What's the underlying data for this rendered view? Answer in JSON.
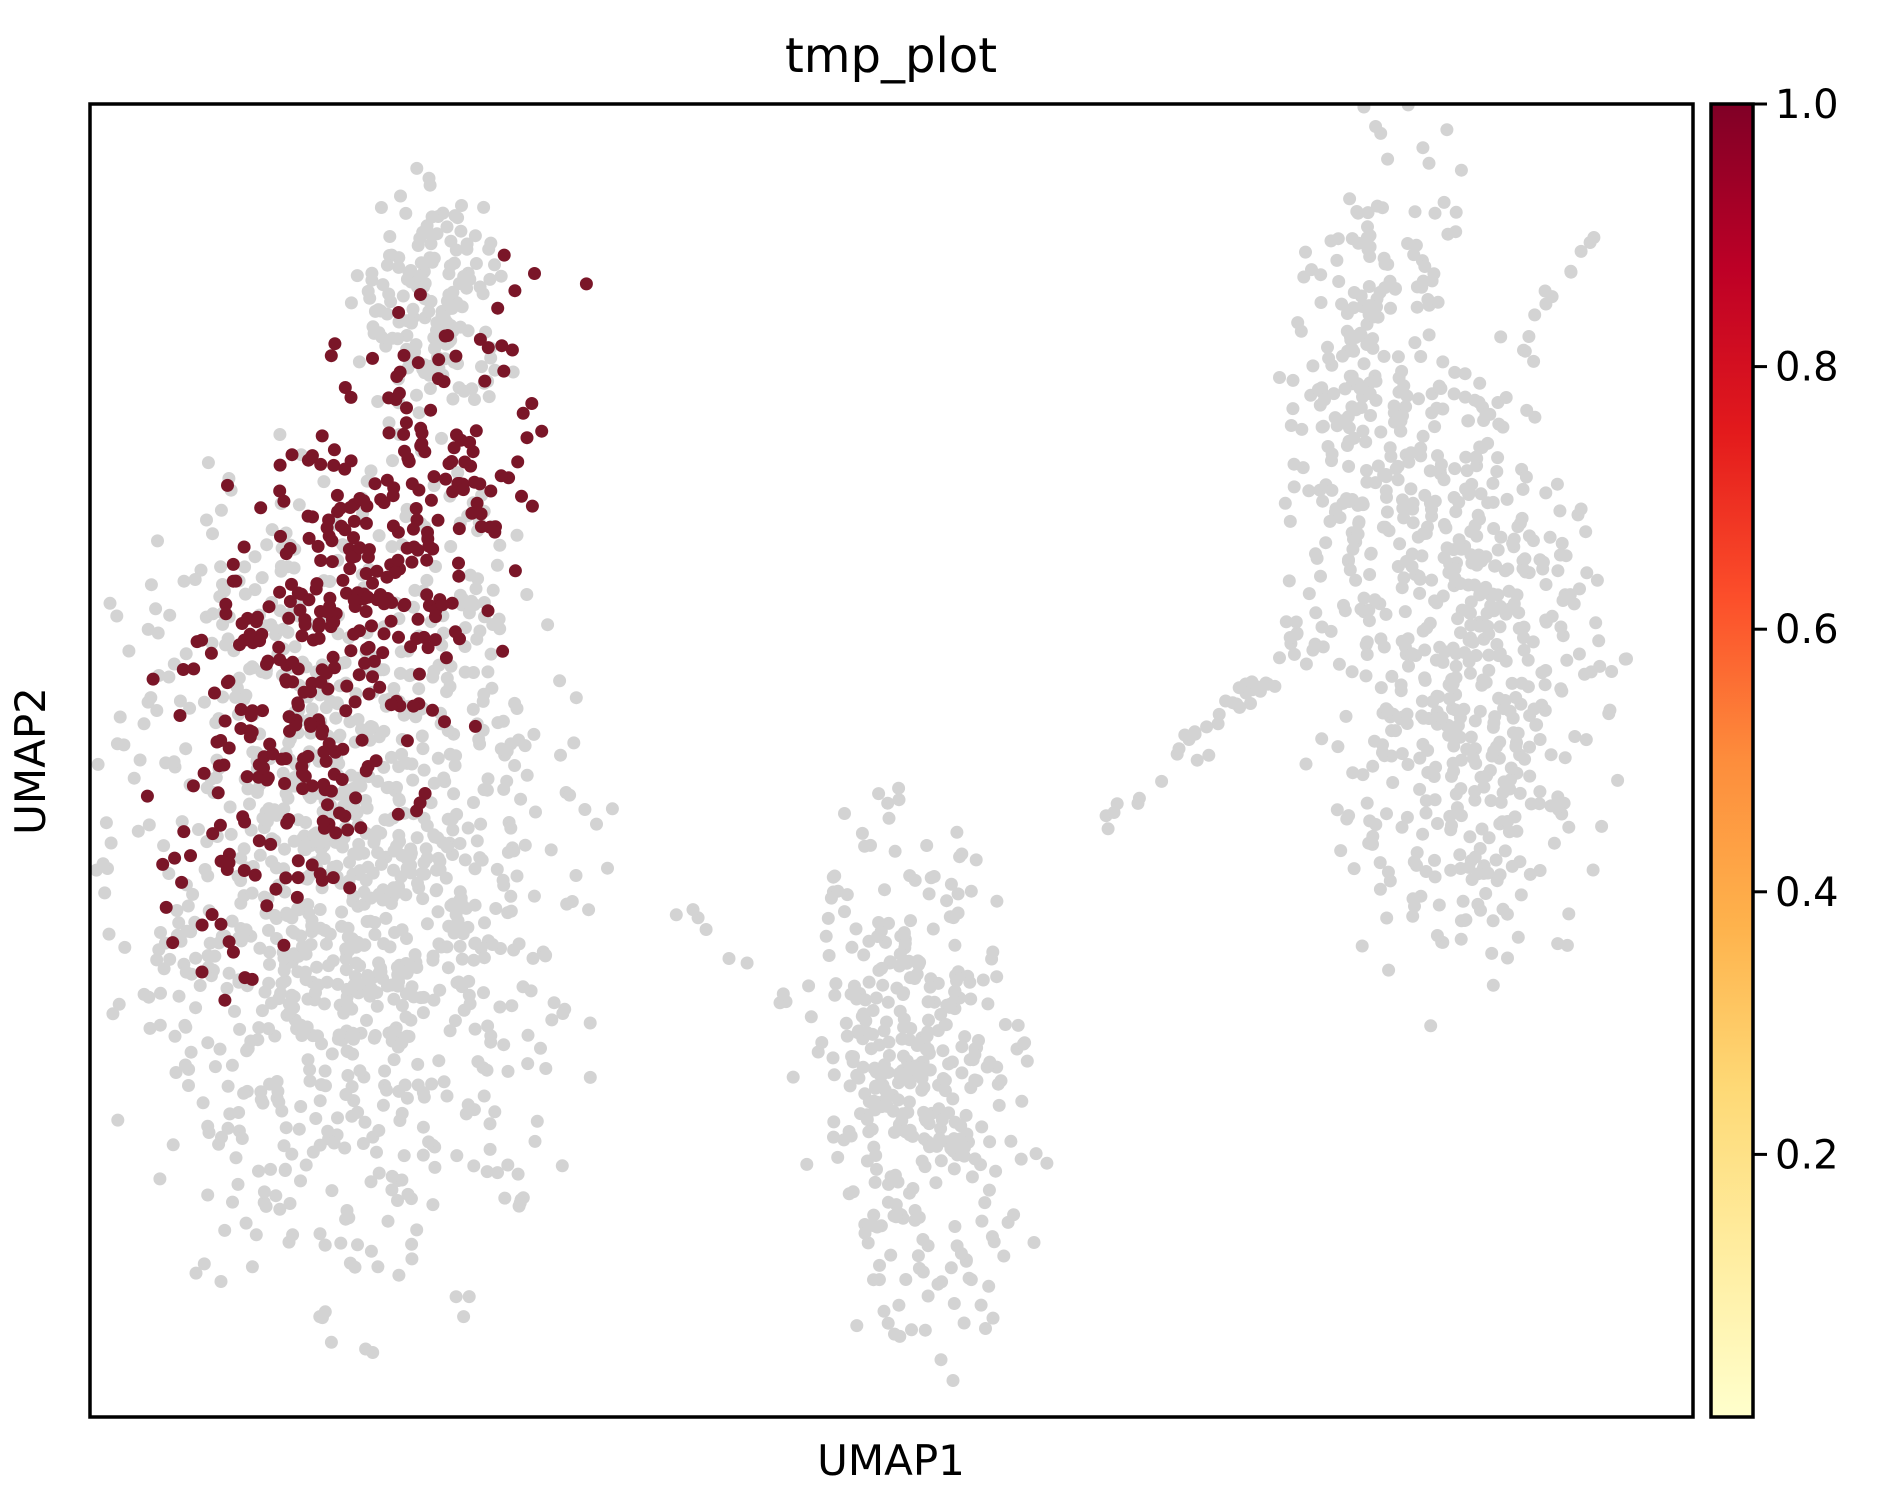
{
  "chart_data": {
    "type": "scatter",
    "title": "tmp_plot",
    "xlabel": "UMAP1",
    "ylabel": "UMAP2",
    "grid": false,
    "background_color": "#d3d3d3",
    "colormap": "YlOrRd",
    "highlight_color": "#7a1628",
    "colorbar": {
      "range": [
        0.0,
        1.0
      ],
      "ticks": [
        {
          "value": 0.2,
          "label": "0.2"
        },
        {
          "value": 0.4,
          "label": "0.4"
        },
        {
          "value": 0.6,
          "label": "0.6"
        },
        {
          "value": 0.8,
          "label": "0.8"
        },
        {
          "value": 1.0,
          "label": "1.0"
        }
      ],
      "stops": [
        "#ffffcc",
        "#ffeda0",
        "#fed976",
        "#feb24c",
        "#fd8d3c",
        "#fc4e2a",
        "#e31a1c",
        "#bd0026",
        "#800026"
      ]
    },
    "clusters": [
      {
        "value": 0.0,
        "center": [
          3.0,
          3.4
        ],
        "spread": [
          1.3,
          1.75
        ],
        "tilt": 0.1,
        "count": 1100
      },
      {
        "value": 0.0,
        "center": [
          4.1,
          8.6
        ],
        "spread": [
          0.42,
          0.55
        ],
        "tilt": 0.0,
        "count": 170
      },
      {
        "value": 0.0,
        "center": [
          4.6,
          6.3
        ],
        "spread": [
          0.14,
          0.35
        ],
        "tilt": 0.0,
        "count": 14
      },
      {
        "value": 1.0,
        "center": [
          3.0,
          5.8
        ],
        "spread": [
          0.75,
          1.6
        ],
        "tilt": -0.55,
        "count": 420
      },
      {
        "value": 0.0,
        "center": [
          9.8,
          1.5
        ],
        "spread": [
          0.62,
          1.1
        ],
        "tilt": 0.15,
        "count": 380
      },
      {
        "value": 0.0,
        "center": [
          16.2,
          5.6
        ],
        "spread": [
          0.8,
          1.45
        ],
        "tilt": 0.1,
        "count": 600
      },
      {
        "value": 0.0,
        "center": [
          15.1,
          8.3
        ],
        "spread": [
          0.38,
          1.1
        ],
        "tilt": -0.25,
        "count": 170
      }
    ],
    "paths": [
      {
        "value": 0.0,
        "from": [
          12.1,
          4.0
        ],
        "to": [
          14.6,
          5.7
        ],
        "count": 42,
        "jitter": 0.09
      },
      {
        "value": 0.0,
        "from": [
          6.9,
          3.2
        ],
        "to": [
          8.4,
          2.2
        ],
        "count": 9,
        "jitter": 0.05
      },
      {
        "value": 0.0,
        "from": [
          17.0,
          8.4
        ],
        "to": [
          17.8,
          9.3
        ],
        "count": 10,
        "jitter": 0.05
      }
    ],
    "xlim": [
      0.0,
      19.0
    ],
    "ylim": [
      -1.5,
      10.5
    ]
  }
}
